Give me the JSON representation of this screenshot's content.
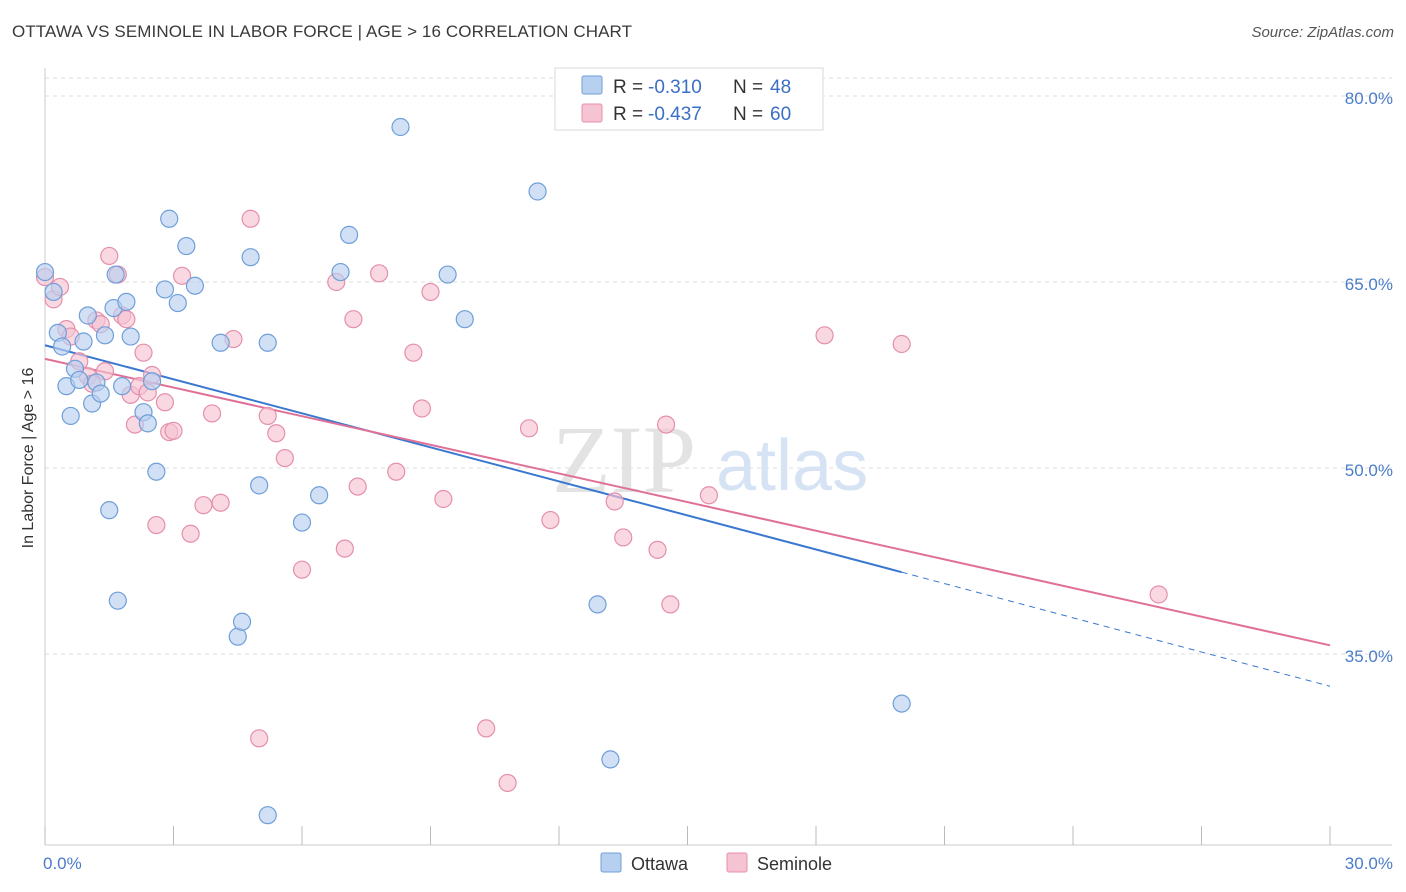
{
  "title": "OTTAWA VS SEMINOLE IN LABOR FORCE | AGE > 16 CORRELATION CHART",
  "source": "Source: ZipAtlas.com",
  "watermark": {
    "zip": "ZIP",
    "atlas": "atlas"
  },
  "colors": {
    "ottawa_fill": "#b8d0f0",
    "ottawa_stroke": "#6f9fd8",
    "ottawa_line": "#3a78cf",
    "seminole_fill": "#f6c3d3",
    "seminole_stroke": "#e58fac",
    "seminole_line": "#e07098",
    "grid": "#dddddd",
    "axis_text": "#4a7cc9"
  },
  "legend": {
    "ottawa": {
      "r_label": "R = ",
      "r_value": "-0.310",
      "n_label": "N = ",
      "n_value": "48"
    },
    "seminole": {
      "r_label": "R = ",
      "r_value": "-0.437",
      "n_label": "N = ",
      "n_value": "60"
    }
  },
  "bottom_legend": {
    "ottawa": "Ottawa",
    "seminole": "Seminole"
  },
  "chart_data": {
    "type": "scatter",
    "title": "OTTAWA VS SEMINOLE IN LABOR FORCE | AGE > 16 CORRELATION CHART",
    "xlabel": "",
    "ylabel": "In Labor Force | Age > 16",
    "xlim": [
      0,
      30
    ],
    "ylim": [
      20,
      83
    ],
    "x_tick_labels": [
      "0.0%",
      "30.0%"
    ],
    "y_ticks": [
      35,
      50,
      65,
      80
    ],
    "y_tick_labels": [
      "35.0%",
      "50.0%",
      "65.0%",
      "80.0%"
    ],
    "series": [
      {
        "name": "Ottawa",
        "r": -0.31,
        "n": 48,
        "trend": {
          "x0": 0,
          "y0": 59.9,
          "x1": 20,
          "y1": 41.6,
          "dash_to_x": 30,
          "dash_to_y": 32.4
        },
        "points": [
          [
            0.0,
            65.8
          ],
          [
            0.2,
            64.2
          ],
          [
            0.3,
            60.9
          ],
          [
            0.4,
            59.8
          ],
          [
            0.5,
            56.6
          ],
          [
            0.6,
            54.2
          ],
          [
            0.7,
            58.0
          ],
          [
            0.8,
            57.1
          ],
          [
            0.9,
            60.2
          ],
          [
            1.0,
            62.3
          ],
          [
            1.1,
            55.2
          ],
          [
            1.2,
            56.9
          ],
          [
            1.3,
            56.0
          ],
          [
            1.4,
            60.7
          ],
          [
            1.5,
            46.6
          ],
          [
            1.6,
            62.9
          ],
          [
            1.65,
            65.6
          ],
          [
            1.7,
            39.3
          ],
          [
            1.8,
            56.6
          ],
          [
            1.9,
            63.4
          ],
          [
            2.0,
            60.6
          ],
          [
            2.3,
            54.5
          ],
          [
            2.4,
            53.6
          ],
          [
            2.5,
            57.0
          ],
          [
            2.6,
            49.7
          ],
          [
            2.8,
            64.4
          ],
          [
            2.9,
            70.1
          ],
          [
            3.1,
            63.3
          ],
          [
            3.3,
            67.9
          ],
          [
            3.5,
            64.7
          ],
          [
            4.1,
            60.1
          ],
          [
            4.5,
            36.4
          ],
          [
            4.6,
            37.6
          ],
          [
            4.8,
            67.0
          ],
          [
            5.0,
            48.6
          ],
          [
            5.2,
            60.1
          ],
          [
            5.2,
            22.0
          ],
          [
            6.0,
            45.6
          ],
          [
            6.4,
            47.8
          ],
          [
            6.9,
            65.8
          ],
          [
            7.1,
            68.8
          ],
          [
            8.3,
            77.5
          ],
          [
            9.4,
            65.6
          ],
          [
            9.8,
            62.0
          ],
          [
            11.5,
            72.3
          ],
          [
            12.9,
            39.0
          ],
          [
            13.2,
            26.5
          ],
          [
            20.0,
            31.0
          ]
        ]
      },
      {
        "name": "Seminole",
        "r": -0.437,
        "n": 60,
        "trend": {
          "x0": 0,
          "y0": 58.8,
          "x1": 30,
          "y1": 35.7
        },
        "points": [
          [
            0.0,
            65.4
          ],
          [
            0.2,
            63.6
          ],
          [
            0.35,
            64.6
          ],
          [
            0.5,
            61.2
          ],
          [
            0.6,
            60.6
          ],
          [
            0.8,
            58.6
          ],
          [
            1.0,
            57.4
          ],
          [
            1.1,
            56.8
          ],
          [
            1.2,
            61.9
          ],
          [
            1.3,
            61.6
          ],
          [
            1.4,
            57.8
          ],
          [
            1.5,
            67.1
          ],
          [
            1.7,
            65.6
          ],
          [
            1.8,
            62.3
          ],
          [
            1.9,
            62.0
          ],
          [
            2.0,
            55.9
          ],
          [
            2.1,
            53.5
          ],
          [
            2.2,
            56.6
          ],
          [
            2.3,
            59.3
          ],
          [
            2.4,
            56.1
          ],
          [
            2.5,
            57.5
          ],
          [
            2.6,
            45.4
          ],
          [
            2.8,
            55.3
          ],
          [
            2.9,
            52.9
          ],
          [
            3.0,
            53.0
          ],
          [
            3.2,
            65.5
          ],
          [
            3.4,
            44.7
          ],
          [
            3.7,
            47.0
          ],
          [
            3.9,
            54.4
          ],
          [
            4.1,
            47.2
          ],
          [
            4.4,
            60.4
          ],
          [
            4.8,
            70.1
          ],
          [
            5.0,
            28.2
          ],
          [
            5.2,
            54.2
          ],
          [
            5.4,
            52.8
          ],
          [
            5.6,
            50.8
          ],
          [
            6.0,
            41.8
          ],
          [
            6.8,
            65.0
          ],
          [
            7.0,
            43.5
          ],
          [
            7.2,
            62.0
          ],
          [
            7.3,
            48.5
          ],
          [
            7.8,
            65.7
          ],
          [
            8.2,
            49.7
          ],
          [
            8.6,
            59.3
          ],
          [
            8.8,
            54.8
          ],
          [
            9.0,
            64.2
          ],
          [
            9.3,
            47.5
          ],
          [
            10.3,
            29.0
          ],
          [
            10.8,
            24.6
          ],
          [
            11.3,
            53.2
          ],
          [
            11.8,
            45.8
          ],
          [
            13.3,
            47.3
          ],
          [
            13.5,
            44.4
          ],
          [
            14.3,
            43.4
          ],
          [
            14.5,
            53.5
          ],
          [
            14.6,
            39.0
          ],
          [
            15.5,
            47.8
          ],
          [
            18.2,
            60.7
          ],
          [
            20.0,
            60.0
          ],
          [
            26.0,
            39.8
          ]
        ]
      }
    ]
  }
}
